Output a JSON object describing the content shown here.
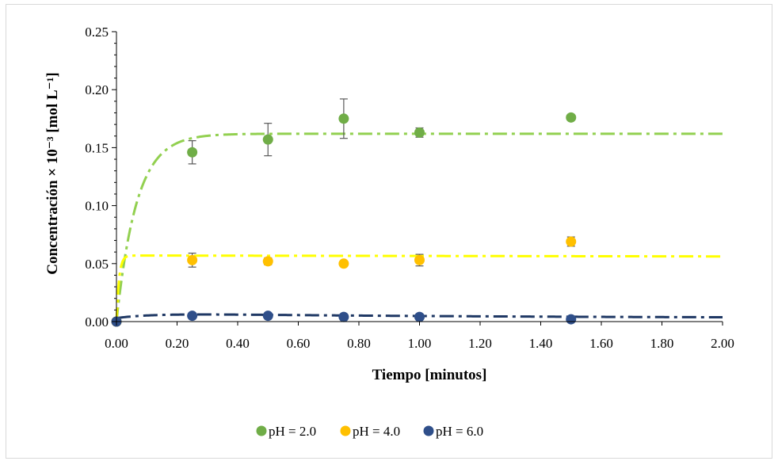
{
  "chart_data": {
    "type": "scatter",
    "xlabel": "Tiempo [minutos]",
    "ylabel": "Concentración × 10⁻³ [mol L⁻¹]",
    "xlim": [
      0,
      2.0
    ],
    "ylim": [
      0,
      0.25
    ],
    "x_ticks": [
      "0.00",
      "0.20",
      "0.40",
      "0.60",
      "0.80",
      "1.00",
      "1.20",
      "1.40",
      "1.60",
      "1.80",
      "2.00"
    ],
    "y_ticks": [
      "0.00",
      "0.05",
      "0.10",
      "0.15",
      "0.20",
      "0.25"
    ],
    "grid": false,
    "legend_position": "bottom",
    "series": [
      {
        "name": "pH = 2.0",
        "color": "#70ad47",
        "fit_color": "#92d050",
        "points": [
          {
            "x": 0.0,
            "y": 0.0,
            "err": 0
          },
          {
            "x": 0.25,
            "y": 0.146,
            "err": 0.01
          },
          {
            "x": 0.5,
            "y": 0.157,
            "err": 0.014
          },
          {
            "x": 0.75,
            "y": 0.175,
            "err": 0.017
          },
          {
            "x": 1.0,
            "y": 0.163,
            "err": 0.004
          },
          {
            "x": 1.5,
            "y": 0.176,
            "err": 0
          }
        ],
        "fit": {
          "kind": "rise",
          "plateau": 0.162,
          "k": 15,
          "decay": 0
        }
      },
      {
        "name": "pH = 4.0",
        "color": "#ffc000",
        "fit_color": "#ffff00",
        "points": [
          {
            "x": 0.0,
            "y": 0.0,
            "err": 0
          },
          {
            "x": 0.25,
            "y": 0.053,
            "err": 0.006
          },
          {
            "x": 0.5,
            "y": 0.052,
            "err": 0.003
          },
          {
            "x": 0.75,
            "y": 0.05,
            "err": 0
          },
          {
            "x": 1.0,
            "y": 0.053,
            "err": 0.005
          },
          {
            "x": 1.5,
            "y": 0.069,
            "err": 0.004
          }
        ],
        "fit": {
          "kind": "rise",
          "plateau": 0.057,
          "k": 120,
          "decay": 0.035
        }
      },
      {
        "name": "pH = 6.0",
        "color": "#2f4f8a",
        "fit_color": "#1f3864",
        "points": [
          {
            "x": 0.0,
            "y": 0.0,
            "err": 0
          },
          {
            "x": 0.25,
            "y": 0.005,
            "err": 0
          },
          {
            "x": 0.5,
            "y": 0.005,
            "err": 0
          },
          {
            "x": 0.75,
            "y": 0.004,
            "err": 0
          },
          {
            "x": 1.0,
            "y": 0.004,
            "err": 0
          },
          {
            "x": 1.5,
            "y": 0.002,
            "err": 0
          }
        ],
        "fit": {
          "kind": "rise-decay",
          "plateau": 0.0075,
          "k": 8,
          "decay": 0.9,
          "start": 0.003
        }
      }
    ]
  }
}
